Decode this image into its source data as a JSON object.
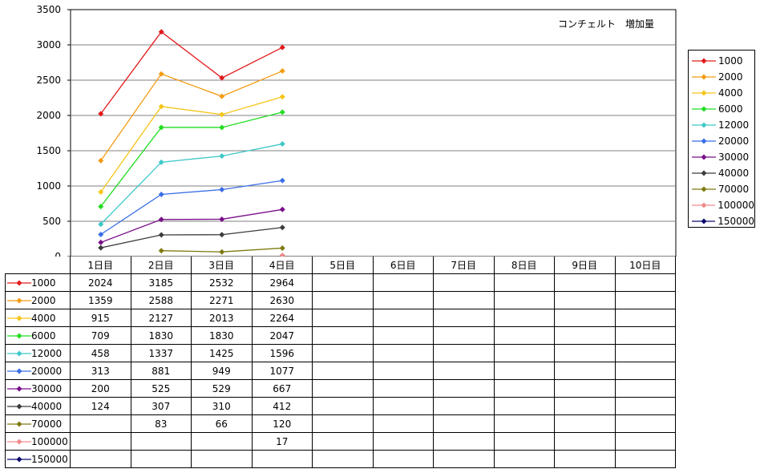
{
  "chart_data": {
    "type": "line",
    "title": "コンチェルト　増加量",
    "categories": [
      "1日目",
      "2日目",
      "3日目",
      "4日目",
      "5日目",
      "6日目",
      "7日目",
      "8日目",
      "9日目",
      "10日目"
    ],
    "ylim": [
      0,
      3500
    ],
    "yticks": [
      "0",
      "500",
      "1000",
      "1500",
      "2000",
      "2500",
      "3000",
      "3500"
    ],
    "grid": true,
    "legend_position": "right",
    "series": [
      {
        "name": "1000",
        "color": "#e31a1c",
        "values": [
          2024,
          3185,
          2532,
          2964,
          null,
          null,
          null,
          null,
          null,
          null
        ]
      },
      {
        "name": "2000",
        "color": "#f39c12",
        "values": [
          1359,
          2588,
          2271,
          2630,
          null,
          null,
          null,
          null,
          null,
          null
        ]
      },
      {
        "name": "4000",
        "color": "#f5c518",
        "values": [
          915,
          2127,
          2013,
          2264,
          null,
          null,
          null,
          null,
          null,
          null
        ]
      },
      {
        "name": "6000",
        "color": "#22dd22",
        "values": [
          709,
          1830,
          1830,
          2047,
          null,
          null,
          null,
          null,
          null,
          null
        ]
      },
      {
        "name": "12000",
        "color": "#3fc8c8",
        "values": [
          458,
          1337,
          1425,
          1596,
          null,
          null,
          null,
          null,
          null,
          null
        ]
      },
      {
        "name": "20000",
        "color": "#3a6ee8",
        "values": [
          313,
          881,
          949,
          1077,
          null,
          null,
          null,
          null,
          null,
          null
        ]
      },
      {
        "name": "30000",
        "color": "#7a0f8a",
        "values": [
          200,
          525,
          529,
          667,
          null,
          null,
          null,
          null,
          null,
          null
        ]
      },
      {
        "name": "40000",
        "color": "#3c3c3c",
        "values": [
          124,
          307,
          310,
          412,
          null,
          null,
          null,
          null,
          null,
          null
        ]
      },
      {
        "name": "70000",
        "color": "#7f7a10",
        "values": [
          null,
          83,
          66,
          120,
          null,
          null,
          null,
          null,
          null,
          null
        ]
      },
      {
        "name": "100000",
        "color": "#f08a8a",
        "values": [
          null,
          null,
          null,
          17,
          null,
          null,
          null,
          null,
          null,
          null
        ]
      },
      {
        "name": "150000",
        "color": "#0a0a6e",
        "values": [
          null,
          null,
          null,
          null,
          null,
          null,
          null,
          null,
          null,
          null
        ]
      }
    ]
  }
}
